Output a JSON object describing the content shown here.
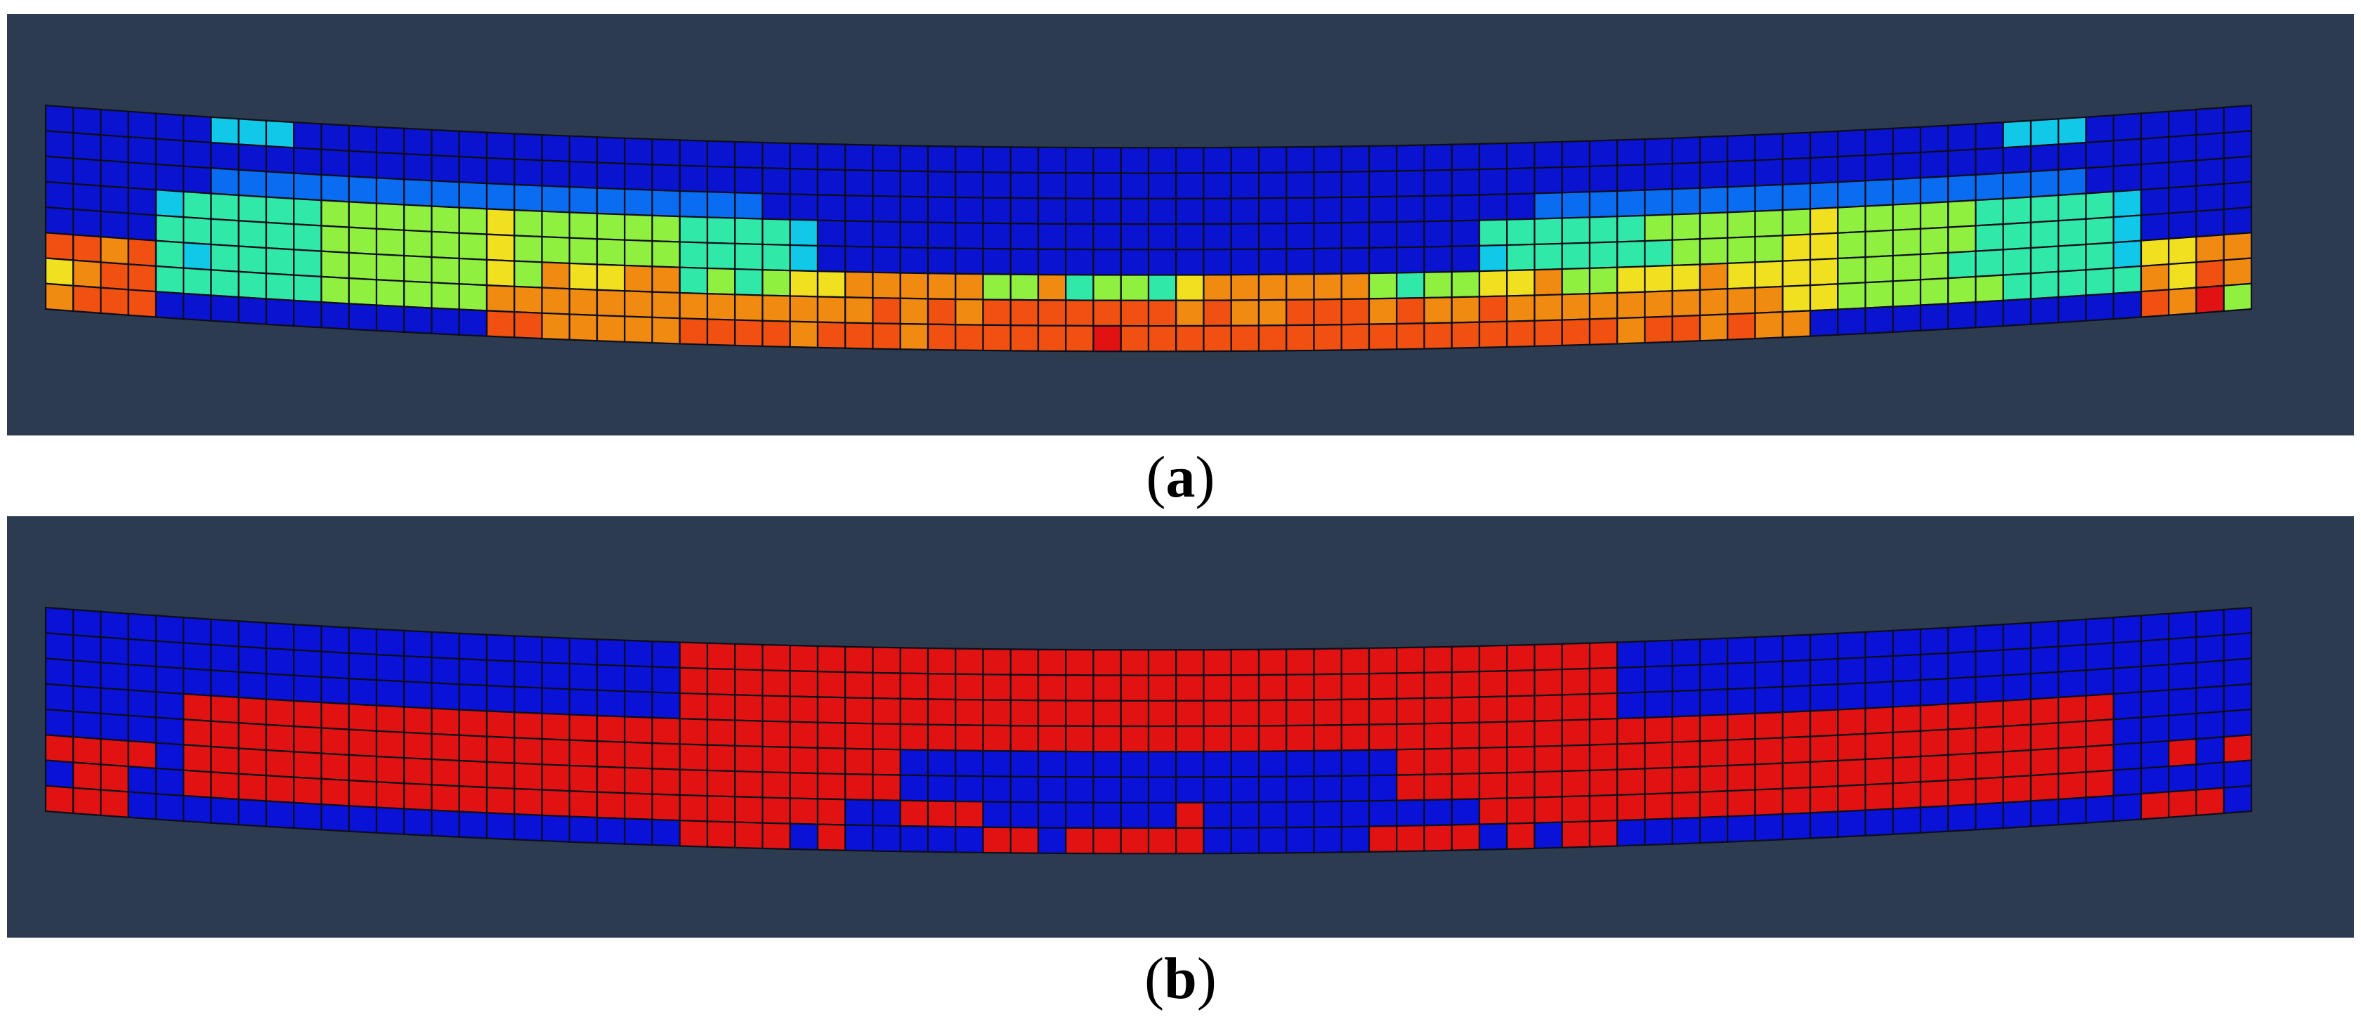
{
  "figure": {
    "panels": [
      {
        "id": "a",
        "caption_open": "(",
        "caption_letter": "a",
        "caption_close": ")",
        "description_kind": "continuous contour (blue to red) on a bent beam mesh",
        "grid": {
          "columns": 80,
          "rows": 8,
          "sag_fraction": 0.26
        }
      },
      {
        "id": "b",
        "caption_open": "(",
        "caption_letter": "b",
        "caption_close": ")",
        "description_kind": "binary state map (red / blue) on a bent beam mesh",
        "grid": {
          "columns": 80,
          "rows": 8,
          "sag_fraction": 0.26
        }
      }
    ],
    "colors": {
      "background": "#2c3b4f",
      "mesh_line": "#0d0d1a",
      "blue": "#0a12d8",
      "red": "#e01212",
      "contour_scale": [
        "#0a14d0",
        "#0a6cf0",
        "#10c8e8",
        "#30e8a8",
        "#90f040",
        "#f0e020",
        "#f08a10",
        "#f05010",
        "#e01212"
      ]
    }
  }
}
